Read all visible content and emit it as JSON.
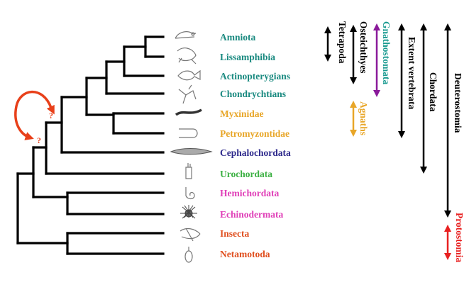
{
  "taxa": [
    {
      "name": "Amniota",
      "color": "#1a8a80",
      "icon": "mouse-icon"
    },
    {
      "name": "Lissamphibia",
      "color": "#1a8a80",
      "icon": "frog-icon"
    },
    {
      "name": "Actinopterygians",
      "color": "#1a8a80",
      "icon": "fish-icon"
    },
    {
      "name": "Chondrychtians",
      "color": "#1a8a80",
      "icon": "shark-icon"
    },
    {
      "name": "Myxinidae",
      "color": "#e8a628",
      "icon": "hagfish-icon"
    },
    {
      "name": "Petromyzontidae",
      "color": "#e8a628",
      "icon": "lamprey-icon"
    },
    {
      "name": "Cephalochordata",
      "color": "#2e2a8c",
      "icon": "lancelet-icon"
    },
    {
      "name": "Urochordata",
      "color": "#3cb043",
      "icon": "tunicate-icon"
    },
    {
      "name": "Hemichordata",
      "color": "#e040b8",
      "icon": "acorn-worm-icon"
    },
    {
      "name": "Echinodermata",
      "color": "#e040b8",
      "icon": "sea-urchin-icon"
    },
    {
      "name": "Insecta",
      "color": "#e05020",
      "icon": "fly-icon"
    },
    {
      "name": "Netamotoda",
      "color": "#e05020",
      "icon": "nematode-icon"
    }
  ],
  "clades": [
    {
      "name": "Tetrapoda",
      "color": "#000000",
      "arrow_color": "#000000"
    },
    {
      "name": "Osteichthyes",
      "color": "#000000",
      "arrow_color": "#000000"
    },
    {
      "name": "Gnathostomata",
      "color": "#1a9a90",
      "arrow_color": "#8a1a9a"
    },
    {
      "name": "Agnaths",
      "color": "#e8a628",
      "arrow_color": "#e8a628"
    },
    {
      "name": "Extent vertebrata",
      "color": "#000000",
      "arrow_color": "#000000"
    },
    {
      "name": "Chordata",
      "color": "#000000",
      "arrow_color": "#000000"
    },
    {
      "name": "Deuterostomia",
      "color": "#000000",
      "arrow_color": "#000000"
    },
    {
      "name": "Protostomia",
      "color": "#e82020",
      "arrow_color": "#e82020"
    }
  ],
  "uncertainty": {
    "marker": "?",
    "color": "#e8401a"
  }
}
